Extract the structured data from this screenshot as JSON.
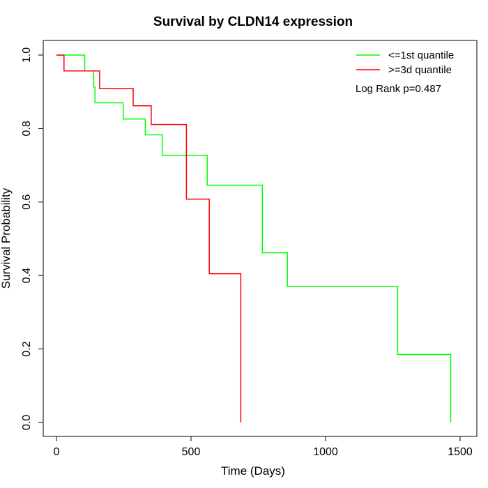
{
  "chart_data": {
    "type": "line",
    "title": "Survival by CLDN14 expression",
    "xlabel": "Time (Days)",
    "ylabel": "Survival Probability",
    "xlim": [
      0,
      1500
    ],
    "ylim": [
      0,
      1
    ],
    "xticks": [
      0,
      500,
      1000,
      1500
    ],
    "xtick_labels": [
      "0",
      "500",
      "1000",
      "1500"
    ],
    "yticks": [
      0,
      0.2,
      0.4,
      0.6,
      0.8,
      1.0
    ],
    "ytick_labels": [
      "0.0",
      "0.2",
      "0.4",
      "0.6",
      "0.8",
      "1.0"
    ],
    "grid": false,
    "legend_position": "top-right",
    "annotation": "Log Rank p=0.487",
    "series": [
      {
        "name": "<=1st quantile",
        "color": "#00ff00",
        "steps": [
          [
            0,
            1.0
          ],
          [
            105,
            1.0
          ],
          [
            105,
            0.957
          ],
          [
            138,
            0.957
          ],
          [
            138,
            0.913
          ],
          [
            143,
            0.913
          ],
          [
            143,
            0.87
          ],
          [
            248,
            0.87
          ],
          [
            248,
            0.826
          ],
          [
            330,
            0.826
          ],
          [
            330,
            0.783
          ],
          [
            393,
            0.783
          ],
          [
            393,
            0.727
          ],
          [
            560,
            0.727
          ],
          [
            560,
            0.646
          ],
          [
            765,
            0.646
          ],
          [
            765,
            0.462
          ],
          [
            858,
            0.462
          ],
          [
            858,
            0.37
          ],
          [
            1268,
            0.37
          ],
          [
            1268,
            0.185
          ],
          [
            1465,
            0.185
          ],
          [
            1465,
            0.0
          ]
        ]
      },
      {
        "name": ">=3d quantile",
        "color": "#ff0000",
        "steps": [
          [
            0,
            1.0
          ],
          [
            28,
            1.0
          ],
          [
            28,
            0.957
          ],
          [
            160,
            0.957
          ],
          [
            160,
            0.909
          ],
          [
            285,
            0.909
          ],
          [
            285,
            0.862
          ],
          [
            352,
            0.862
          ],
          [
            352,
            0.811
          ],
          [
            483,
            0.811
          ],
          [
            483,
            0.608
          ],
          [
            568,
            0.608
          ],
          [
            568,
            0.405
          ],
          [
            685,
            0.405
          ],
          [
            685,
            0.0
          ]
        ]
      }
    ]
  }
}
